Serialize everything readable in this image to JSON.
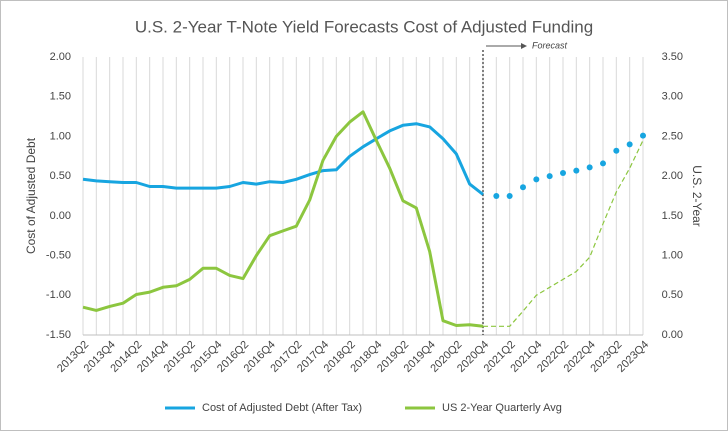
{
  "chart_data": {
    "type": "line",
    "title": "U.S. 2-Year T-Note Yield Forecasts Cost of Adjusted Funding",
    "y_label": "Cost of Adjusted Debt",
    "y2_label": "U.S. 2-Year",
    "categories": [
      "2013Q2",
      null,
      "2013Q4",
      null,
      "2014Q2",
      null,
      "2014Q4",
      null,
      "2015Q2",
      null,
      "2015Q4",
      null,
      "2016Q2",
      null,
      "2016Q4",
      null,
      "2017Q2",
      null,
      "2017Q4",
      null,
      "2018Q2",
      null,
      "2018Q4",
      null,
      "2019Q2",
      null,
      "2019Q4",
      null,
      "2020Q2",
      null,
      "2020Q4",
      null,
      "2021Q2",
      null,
      "2021Q4",
      null,
      "2022Q2",
      null,
      "2022Q4",
      null,
      "2023Q2",
      null,
      "2023Q4"
    ],
    "forecast": {
      "label": "Forecast",
      "start": "2020Q4"
    },
    "series": [
      {
        "name": "Cost of Adjusted Debt (After Tax)",
        "color": "#17a5e0",
        "axis": "y",
        "forecast_style": "dots",
        "values": [
          0.46,
          0.44,
          0.43,
          0.42,
          0.42,
          0.37,
          0.37,
          0.35,
          0.35,
          0.35,
          0.35,
          0.37,
          0.42,
          0.4,
          0.43,
          0.42,
          0.46,
          0.52,
          0.57,
          0.58,
          0.75,
          0.87,
          0.97,
          1.07,
          1.14,
          1.16,
          1.12,
          0.97,
          0.78,
          0.4,
          0.27,
          0.25,
          0.25,
          0.36,
          0.46,
          0.5,
          0.54,
          0.57,
          0.61,
          0.66,
          0.82,
          0.9,
          1.01
        ]
      },
      {
        "name": "US 2-Year Quarterly Avg",
        "color": "#8cc63f",
        "axis": "y2",
        "forecast_style": "dashed",
        "values": [
          0.35,
          0.31,
          0.36,
          0.4,
          0.51,
          0.54,
          0.6,
          0.62,
          0.7,
          0.84,
          0.84,
          0.75,
          0.71,
          1.0,
          1.25,
          1.31,
          1.37,
          1.7,
          2.2,
          2.5,
          2.68,
          2.81,
          2.45,
          2.1,
          1.69,
          1.6,
          1.05,
          0.18,
          0.12,
          0.13,
          0.11,
          0.11,
          0.11,
          0.3,
          0.5,
          0.6,
          0.7,
          0.8,
          0.98,
          1.4,
          1.8,
          2.1,
          2.45
        ]
      }
    ],
    "ylim": [
      -1.5,
      2.0
    ],
    "yticks": [
      {
        "value": -1.5,
        "label": "-1.50"
      },
      {
        "value": -1.0,
        "label": "-1.00"
      },
      {
        "value": -0.5,
        "label": "-0.50"
      },
      {
        "value": 0,
        "label": "0.00"
      },
      {
        "value": 0.5,
        "label": "0.50"
      },
      {
        "value": 1.0,
        "label": "1.00"
      },
      {
        "value": 1.5,
        "label": "1.50"
      },
      {
        "value": 2.0,
        "label": "2.00"
      }
    ],
    "y2lim": [
      0,
      3.5
    ],
    "y2ticks": [
      {
        "value": 0,
        "label": "0.00"
      },
      {
        "value": 0.5,
        "label": "0.50"
      },
      {
        "value": 1.0,
        "label": "1.00"
      },
      {
        "value": 1.5,
        "label": "1.50"
      },
      {
        "value": 2.0,
        "label": "2.00"
      },
      {
        "value": 2.5,
        "label": "2.50"
      },
      {
        "value": 3.0,
        "label": "3.00"
      },
      {
        "value": 3.5,
        "label": "3.50"
      }
    ],
    "grid": "x",
    "legend": "bottom"
  }
}
